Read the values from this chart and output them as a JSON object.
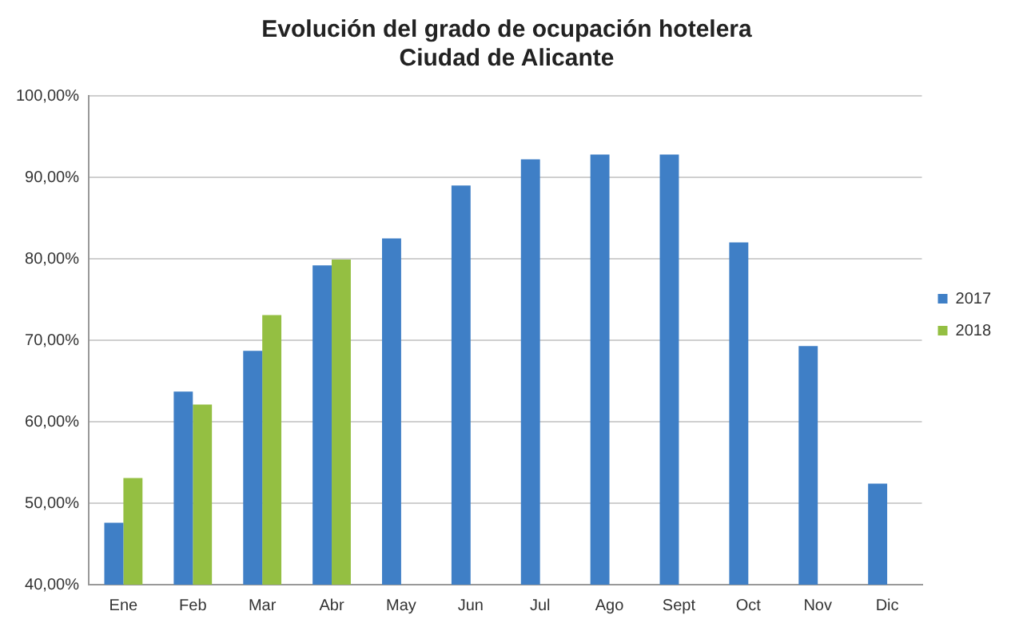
{
  "chart_data": {
    "type": "bar",
    "title": [
      "Evolución del grado de ocupación hotelera",
      "Ciudad de Alicante"
    ],
    "categories": [
      "Ene",
      "Feb",
      "Mar",
      "Abr",
      "May",
      "Jun",
      "Jul",
      "Ago",
      "Sept",
      "Oct",
      "Nov",
      "Dic"
    ],
    "series": [
      {
        "name": "2017",
        "color": "#3f7fc6",
        "values": [
          47.6,
          63.7,
          68.7,
          79.2,
          82.5,
          89.0,
          92.2,
          92.8,
          92.8,
          82.0,
          69.3,
          52.4
        ]
      },
      {
        "name": "2018",
        "color": "#94bf42",
        "values": [
          53.1,
          62.1,
          73.1,
          79.9,
          null,
          null,
          null,
          null,
          null,
          null,
          null,
          null
        ]
      }
    ],
    "ylim": [
      40,
      100
    ],
    "yticks": [
      {
        "value": 40,
        "label": "40,00%"
      },
      {
        "value": 50,
        "label": "50,00%"
      },
      {
        "value": 60,
        "label": "60,00%"
      },
      {
        "value": 70,
        "label": "70,00%"
      },
      {
        "value": 80,
        "label": "80,00%"
      },
      {
        "value": 90,
        "label": "90,00%"
      },
      {
        "value": 100,
        "label": "100,00%"
      }
    ],
    "grid": "y",
    "legend": "right"
  }
}
